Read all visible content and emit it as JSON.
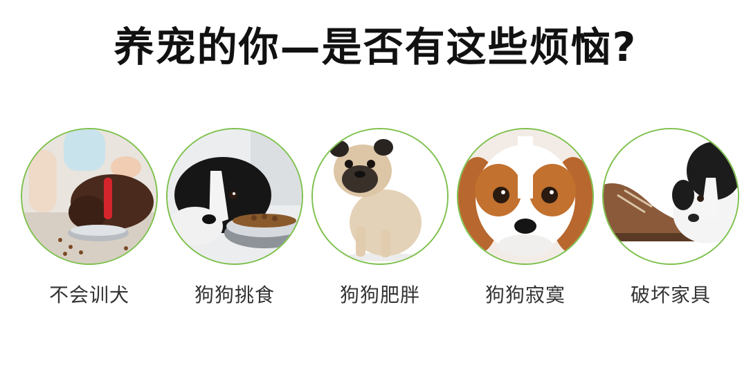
{
  "headline": "养宠的你—是否有这些烦恼?",
  "items": [
    {
      "label": "不会训犬",
      "photo": "puppy-eating-from-bowl-with-child"
    },
    {
      "label": "狗狗挑食",
      "photo": "border-collie-beside-food-bowl"
    },
    {
      "label": "狗狗肥胖",
      "photo": "sitting-pug"
    },
    {
      "label": "狗狗寂寞",
      "photo": "cavalier-king-charles-face"
    },
    {
      "label": "破坏家具",
      "photo": "puppy-chewing-shoe"
    }
  ],
  "colors": {
    "circle_border": "#7cc04a",
    "headline": "#111111",
    "label": "#333333"
  }
}
